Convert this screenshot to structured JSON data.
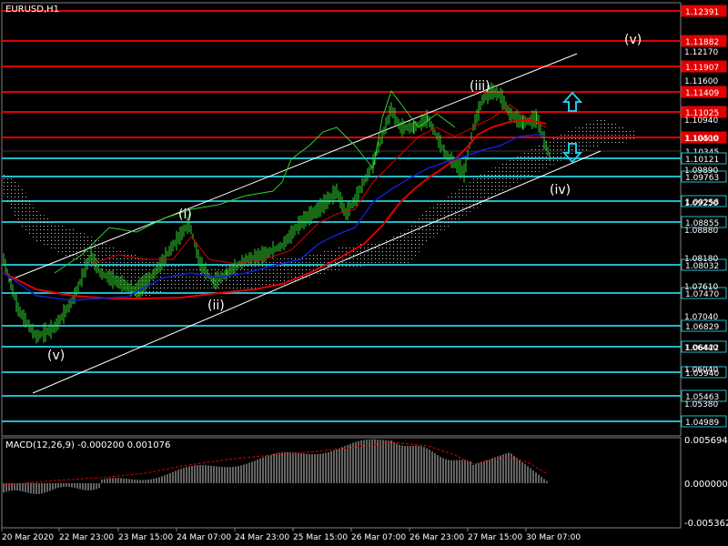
{
  "chart_title": "EURUSD,H1",
  "macd_label": "MACD(12,26,9) -0.000200 0.001076",
  "price_axis_ticks": [
    "1.12170",
    "1.11600",
    "1.10940",
    "1.10400",
    "1.09890",
    "1.09250",
    "1.08880",
    "1.08180",
    "1.07610",
    "1.07040",
    "1.06440",
    "1.06040",
    "1.05380"
  ],
  "level_lines": [
    {
      "price": "1.12391",
      "color": "#e00000"
    },
    {
      "price": "1.11882",
      "color": "#e00000"
    },
    {
      "price": "1.11907",
      "color": "#e00000"
    },
    {
      "price": "1.11409",
      "color": "#e00000"
    },
    {
      "price": "1.11025",
      "color": "#e00000"
    },
    {
      "price": "1.10510",
      "color": "#e00000"
    },
    {
      "price": "1.10345",
      "color": "#3a3a3a"
    },
    {
      "price": "1.10121",
      "color": "#22b8c8"
    },
    {
      "price": "1.09763",
      "color": "#22b8c8"
    },
    {
      "price": "1.09258",
      "color": "#22b8c8"
    },
    {
      "price": "1.08855",
      "color": "#22b8c8"
    },
    {
      "price": "1.08032",
      "color": "#22b8c8"
    },
    {
      "price": "1.07470",
      "color": "#22b8c8"
    },
    {
      "price": "1.06829",
      "color": "#22b8c8"
    },
    {
      "price": "1.06422",
      "color": "#22b8c8"
    },
    {
      "price": "1.05940",
      "color": "#22b8c8"
    },
    {
      "price": "1.05463",
      "color": "#22b8c8"
    },
    {
      "price": "1.04989",
      "color": "#22b8c8"
    }
  ],
  "macd_axis_ticks": [
    "0.005694",
    "0.000000",
    "-0.005362"
  ],
  "time_axis_labels": [
    "20 Mar 2020",
    "22 Mar 23:00",
    "23 Mar 15:00",
    "24 Mar 07:00",
    "24 Mar 23:00",
    "25 Mar 15:00",
    "26 Mar 07:00",
    "26 Mar 23:00",
    "27 Mar 15:00",
    "30 Mar 07:00"
  ],
  "wave_labels": [
    "(v)",
    "(i)",
    "(ii)",
    "(iii)",
    "(iv)",
    "(v)"
  ],
  "arrows": {
    "up": "up-arrow",
    "down": "down-arrow"
  },
  "colors": {
    "background": "#000000",
    "price_line": "#2fd02f",
    "resistance": "#e00000",
    "support": "#22b8c8",
    "ma_fast": "#e00000",
    "ma_slow": "#1020d0",
    "channel": "#ffffff",
    "macd_hist": "#c8c8c8",
    "macd_signal": "#e00000",
    "arrow": "#22c8e8"
  }
}
